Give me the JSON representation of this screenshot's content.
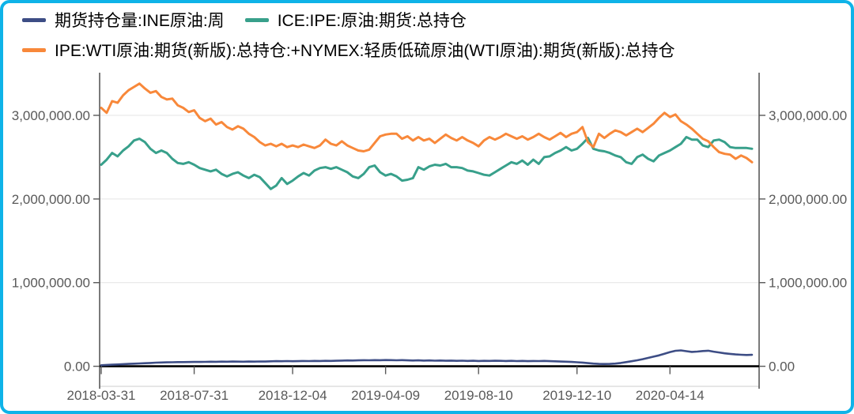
{
  "frame": {
    "border_color": "#0fb3e8",
    "background": "#ffffff"
  },
  "legend": {
    "position": "top-left"
  },
  "chart_data": {
    "type": "line",
    "title": "",
    "xlabel": "",
    "ylabel": "",
    "grid": true,
    "legend_position": "top-left",
    "axis_color": "#595959",
    "grid_color": "#e4e4e4",
    "zero_line_color": "#000000",
    "plot_border_color": "#cccccc",
    "ylim": [
      -240000,
      3510000
    ],
    "y_axis": {
      "tick_values": [
        0,
        1000000,
        2000000,
        3000000
      ],
      "tick_labels": [
        "0.00",
        "1,000,000.00",
        "2,000,000.00",
        "3,000,000.00"
      ],
      "sides": [
        "left",
        "right"
      ]
    },
    "x_axis": {
      "tick_labels": [
        "2018-03-31",
        "2018-07-31",
        "2018-12-04",
        "2019-04-09",
        "2019-08-10",
        "2019-12-10",
        "2020-04-14"
      ],
      "tick_indices": [
        0,
        17,
        35,
        52,
        69,
        87,
        104
      ]
    },
    "series": [
      {
        "id": "ine",
        "name": "期货持仓量:INE原油:周",
        "color": "#3d4d85",
        "width": 2.6,
        "values": [
          12000,
          16000,
          19000,
          22000,
          25000,
          28000,
          31000,
          34000,
          37000,
          40000,
          43000,
          45000,
          47000,
          48000,
          50000,
          50000,
          51000,
          52000,
          52000,
          53000,
          55000,
          54000,
          56000,
          55000,
          57000,
          56000,
          55000,
          57000,
          56000,
          58000,
          57000,
          59000,
          61000,
          60000,
          62000,
          60000,
          61000,
          63000,
          62000,
          64000,
          63000,
          65000,
          64000,
          66000,
          68000,
          70000,
          69000,
          71000,
          73000,
          72000,
          74000,
          73000,
          75000,
          74000,
          72000,
          74000,
          71000,
          69000,
          71000,
          68000,
          70000,
          67000,
          69000,
          66000,
          68000,
          65000,
          67000,
          64000,
          66000,
          63000,
          65000,
          64000,
          66000,
          65000,
          63000,
          65000,
          62000,
          64000,
          61000,
          63000,
          62000,
          64000,
          61000,
          59000,
          57000,
          55000,
          52000,
          48000,
          44000,
          38000,
          32000,
          28000,
          27000,
          28000,
          32000,
          40000,
          50000,
          60000,
          72000,
          85000,
          100000,
          115000,
          130000,
          150000,
          170000,
          185000,
          190000,
          180000,
          172000,
          176000,
          182000,
          186000,
          175000,
          165000,
          155000,
          148000,
          142000,
          138000,
          135000,
          137000
        ]
      },
      {
        "id": "ice_ipe",
        "name": "ICE:IPE:原油:期货:总持仓",
        "color": "#38a08b",
        "width": 3,
        "values": [
          2410000,
          2470000,
          2550000,
          2510000,
          2580000,
          2630000,
          2700000,
          2720000,
          2680000,
          2600000,
          2550000,
          2580000,
          2550000,
          2480000,
          2430000,
          2420000,
          2440000,
          2410000,
          2370000,
          2350000,
          2330000,
          2350000,
          2300000,
          2270000,
          2300000,
          2320000,
          2280000,
          2250000,
          2290000,
          2260000,
          2190000,
          2120000,
          2160000,
          2250000,
          2180000,
          2220000,
          2270000,
          2310000,
          2280000,
          2340000,
          2370000,
          2380000,
          2360000,
          2380000,
          2350000,
          2320000,
          2270000,
          2250000,
          2300000,
          2380000,
          2400000,
          2320000,
          2280000,
          2300000,
          2270000,
          2220000,
          2230000,
          2250000,
          2380000,
          2350000,
          2390000,
          2410000,
          2400000,
          2420000,
          2380000,
          2380000,
          2370000,
          2340000,
          2330000,
          2310000,
          2290000,
          2280000,
          2320000,
          2360000,
          2400000,
          2440000,
          2420000,
          2460000,
          2410000,
          2470000,
          2420000,
          2500000,
          2510000,
          2550000,
          2580000,
          2620000,
          2580000,
          2600000,
          2660000,
          2730000,
          2600000,
          2580000,
          2570000,
          2550000,
          2520000,
          2500000,
          2440000,
          2420000,
          2500000,
          2530000,
          2480000,
          2450000,
          2520000,
          2550000,
          2580000,
          2620000,
          2660000,
          2740000,
          2710000,
          2710000,
          2640000,
          2620000,
          2700000,
          2710000,
          2680000,
          2620000,
          2610000,
          2610000,
          2610000,
          2600000
        ]
      },
      {
        "id": "ipe_nymex",
        "name": "IPE:WTI原油:期货(新版):总持仓:+NYMEX:轻质低硫原油(WTI原油):期货(新版):总持仓",
        "color": "#f8883a",
        "width": 3,
        "values": [
          3090000,
          3030000,
          3170000,
          3150000,
          3240000,
          3300000,
          3340000,
          3380000,
          3320000,
          3270000,
          3290000,
          3220000,
          3190000,
          3200000,
          3120000,
          3090000,
          3040000,
          3060000,
          2970000,
          2930000,
          2960000,
          2890000,
          2920000,
          2860000,
          2830000,
          2870000,
          2840000,
          2780000,
          2740000,
          2680000,
          2640000,
          2660000,
          2630000,
          2660000,
          2620000,
          2640000,
          2620000,
          2650000,
          2630000,
          2610000,
          2640000,
          2710000,
          2660000,
          2640000,
          2690000,
          2640000,
          2610000,
          2580000,
          2570000,
          2590000,
          2670000,
          2750000,
          2770000,
          2780000,
          2780000,
          2720000,
          2750000,
          2700000,
          2740000,
          2700000,
          2720000,
          2670000,
          2720000,
          2770000,
          2730000,
          2700000,
          2740000,
          2700000,
          2670000,
          2630000,
          2700000,
          2740000,
          2710000,
          2740000,
          2780000,
          2750000,
          2720000,
          2750000,
          2710000,
          2740000,
          2780000,
          2740000,
          2710000,
          2750000,
          2790000,
          2740000,
          2780000,
          2800000,
          2860000,
          2680000,
          2620000,
          2780000,
          2730000,
          2780000,
          2820000,
          2800000,
          2760000,
          2800000,
          2840000,
          2800000,
          2850000,
          2900000,
          2970000,
          3030000,
          2980000,
          3010000,
          2930000,
          2890000,
          2840000,
          2780000,
          2720000,
          2690000,
          2620000,
          2560000,
          2540000,
          2530000,
          2480000,
          2520000,
          2490000,
          2440000
        ]
      }
    ]
  }
}
